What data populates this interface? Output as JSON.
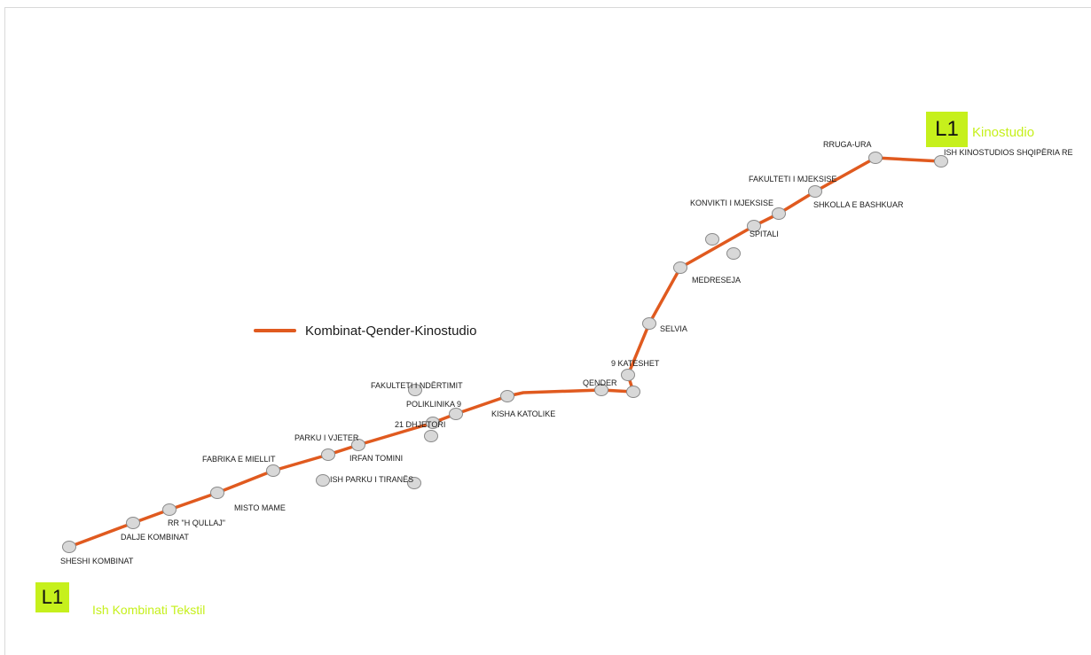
{
  "line": {
    "badge": "L1",
    "color": "#e05a1f",
    "name": "Kombinat-Qender-Kinostudio"
  },
  "termini": {
    "start": {
      "badge": "L1",
      "name": "Ish Kombinati Tekstil"
    },
    "end": {
      "badge": "L1",
      "name": "Kinostudio"
    }
  },
  "colors": {
    "badge": "#c6f01c",
    "station_fill": "#d8d8d8",
    "station_stroke": "#8a8a8a"
  },
  "stations": [
    {
      "id": "sheshi-kombinat",
      "label": "SHESHI KOMBINAT"
    },
    {
      "id": "dalje-kombinat",
      "label": "DALJE KOMBINAT"
    },
    {
      "id": "rr-h-qullaj",
      "label": "RR \"H QULLAJ\""
    },
    {
      "id": "misto-mame",
      "label": "MISTO MAME"
    },
    {
      "id": "fabrika-e-miellit",
      "label": "FABRIKA E MIELLIT"
    },
    {
      "id": "parku-i-vjeter",
      "label": "PARKU I VJETER"
    },
    {
      "id": "irfan-tomini",
      "label": "IRFAN TOMINI"
    },
    {
      "id": "21-dhjetori",
      "label": "21 DHJETORI"
    },
    {
      "id": "poliklinika-9",
      "label": "POLIKLINIKA 9"
    },
    {
      "id": "kisha-katolike",
      "label": "KISHA KATOLIKE"
    },
    {
      "id": "qender",
      "label": "QENDER"
    },
    {
      "id": "9-kateshet",
      "label": "9 KATESHET"
    },
    {
      "id": "selvia",
      "label": "SELVIA"
    },
    {
      "id": "medreseja",
      "label": "MEDRESEJA"
    },
    {
      "id": "spitali",
      "label": "SPITALI"
    },
    {
      "id": "konvikti-i-mjeksise",
      "label": "KONVIKTI I MJEKSISE"
    },
    {
      "id": "shkolla-e-bashkuar",
      "label": "SHKOLLA E BASHKUAR"
    },
    {
      "id": "fakulteti-i-mjeksise",
      "label": "FAKULTETI I MJEKSISE"
    },
    {
      "id": "rruga-ura",
      "label": "RRUGA-URA"
    },
    {
      "id": "ish-kinostudios",
      "label": "ISH KINOSTUDIOS SHQIPËRIA RE"
    }
  ],
  "off_route_stops": [
    {
      "id": "fakulteti-i-ndertimit",
      "label": "FAKULTETI I NDËRTIMIT"
    },
    {
      "id": "ish-parku-i-tiranes",
      "label": "ISH PARKU I TIRANËS"
    },
    {
      "id": "unlabeled-1",
      "label": ""
    },
    {
      "id": "unlabeled-2",
      "label": ""
    },
    {
      "id": "unlabeled-3",
      "label": ""
    }
  ]
}
